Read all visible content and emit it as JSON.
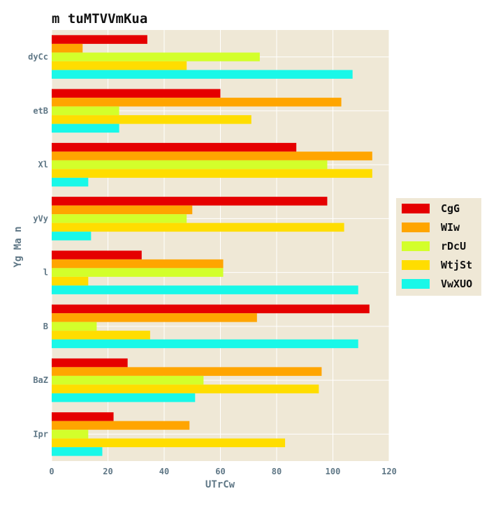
{
  "chart_data": {
    "type": "bar",
    "orientation": "horizontal",
    "title": "m tuMTVVmKua",
    "xlabel": "UTrCw",
    "ylabel": "Yg Ma n",
    "xlim": [
      0,
      120
    ],
    "xticks": [
      0,
      20,
      40,
      60,
      80,
      100,
      120
    ],
    "categories": [
      "dyCc",
      "etB",
      "Xl",
      "yVy",
      "l",
      "B",
      "BaZ",
      "Ipr"
    ],
    "series": [
      {
        "name": "CgG",
        "color": "#e50000",
        "values": [
          34,
          60,
          87,
          98,
          32,
          113,
          27,
          22
        ]
      },
      {
        "name": "WIw",
        "color": "#ffa500",
        "values": [
          11,
          103,
          114,
          50,
          61,
          73,
          96,
          49
        ]
      },
      {
        "name": "rDcU",
        "color": "#d3ff2b",
        "values": [
          74,
          24,
          98,
          48,
          61,
          16,
          54,
          13
        ]
      },
      {
        "name": "WtjSt",
        "color": "#ffdd00",
        "values": [
          48,
          71,
          114,
          104,
          13,
          35,
          95,
          83
        ]
      },
      {
        "name": "VwXUO",
        "color": "#19f8e8",
        "values": [
          107,
          24,
          13,
          14,
          109,
          109,
          51,
          18
        ]
      }
    ],
    "grid": true,
    "legend": "right",
    "background_color": "#efe8d6",
    "grid_color": "#ffffff"
  }
}
